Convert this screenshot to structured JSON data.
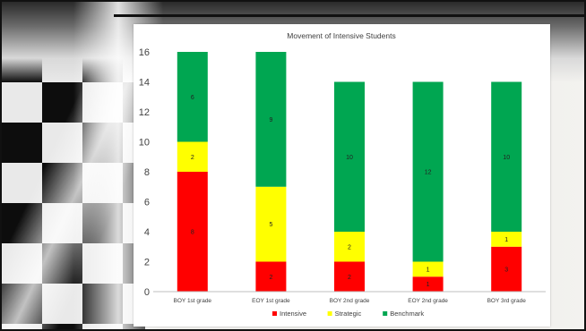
{
  "chart_data": {
    "type": "bar",
    "stacked": true,
    "title": "Movement of Intensive Students",
    "categories": [
      "BOY 1st grade",
      "EOY 1st grade",
      "BOY 2nd grade",
      "EOY 2nd grade",
      "BOY 3rd grade"
    ],
    "series": [
      {
        "name": "Intensive",
        "color": "#ff0000",
        "values": [
          8,
          2,
          2,
          1,
          3
        ]
      },
      {
        "name": "Strategic",
        "color": "#ffff00",
        "values": [
          2,
          5,
          2,
          1,
          1
        ]
      },
      {
        "name": "Benchmark",
        "color": "#00a651",
        "values": [
          6,
          9,
          10,
          12,
          10
        ]
      }
    ],
    "ylim": [
      0,
      16
    ],
    "yticks": [
      0,
      2,
      4,
      6,
      8,
      10,
      12,
      14,
      16
    ],
    "grid": false,
    "legend": "bottom"
  }
}
